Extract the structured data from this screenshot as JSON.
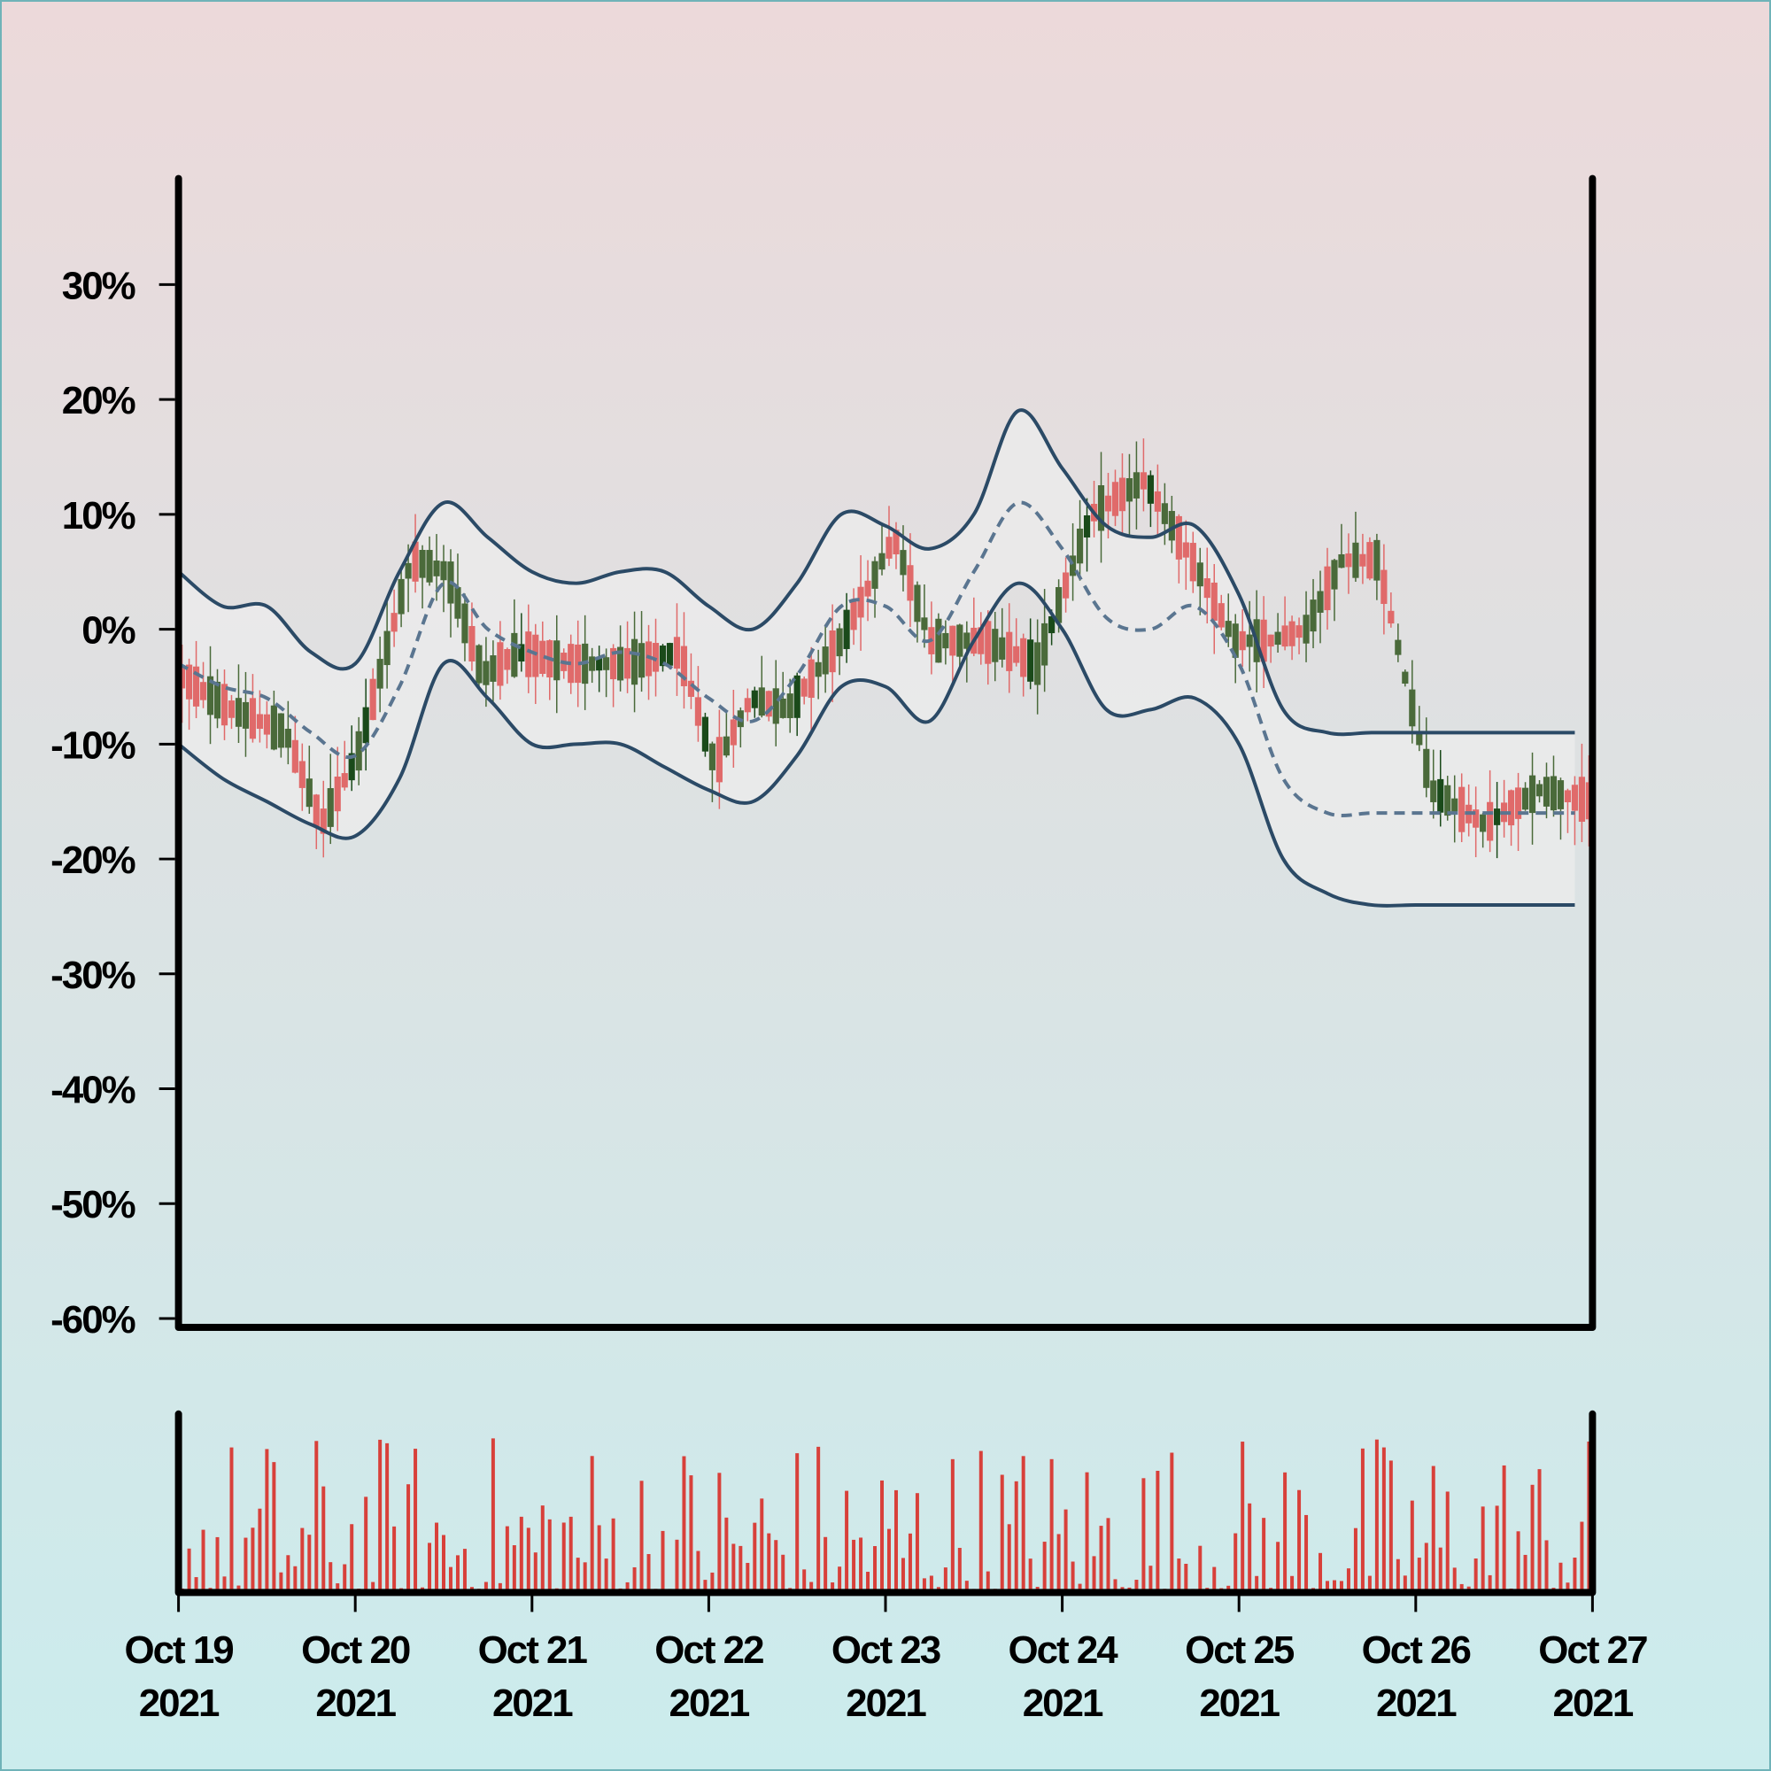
{
  "chart_data": {
    "type": "candlestick",
    "title": "",
    "xlabel": "",
    "ylabel": "",
    "x_start": "2021-10-19",
    "x_end": "2021-10-27",
    "x_tick_labels": [
      {
        "line1": "Oct 19",
        "line2": "2021"
      },
      {
        "line1": "Oct 20",
        "line2": "2021"
      },
      {
        "line1": "Oct 21",
        "line2": "2021"
      },
      {
        "line1": "Oct 22",
        "line2": "2021"
      },
      {
        "line1": "Oct 23",
        "line2": "2021"
      },
      {
        "line1": "Oct 24",
        "line2": "2021"
      },
      {
        "line1": "Oct 25",
        "line2": "2021"
      },
      {
        "line1": "Oct 26",
        "line2": "2021"
      },
      {
        "line1": "Oct 27",
        "line2": "2021"
      }
    ],
    "y_ticks": [
      30,
      20,
      10,
      0,
      -10,
      -20,
      -30,
      -40,
      -50,
      -60
    ],
    "y_tick_labels": [
      "30%",
      "20%",
      "10%",
      "0%",
      "-10%",
      "-20%",
      "-30%",
      "-40%",
      "-50%",
      "-60%"
    ],
    "ylim": [
      -60,
      38
    ],
    "y_unit": "%",
    "bollinger_bands": {
      "x": [
        0,
        0.25,
        0.5,
        0.75,
        1.0,
        1.25,
        1.5,
        1.75,
        2.0,
        2.25,
        2.5,
        2.75,
        3.0,
        3.25,
        3.5,
        3.75,
        4.0,
        4.25,
        4.5,
        4.75,
        5.0,
        5.25,
        5.5,
        5.75,
        6.0,
        6.25,
        6.5,
        6.75,
        7.0,
        7.25,
        7.5,
        7.75,
        7.9
      ],
      "upper": [
        5,
        2,
        2,
        -2,
        -3,
        5,
        11,
        8,
        5,
        4,
        5,
        5,
        2,
        0,
        4,
        10,
        9,
        7,
        10,
        19,
        14,
        9,
        8,
        9,
        3,
        -7,
        -9,
        -9,
        -9,
        -9,
        -9,
        -9,
        -9
      ],
      "middle": [
        -3,
        -5,
        -6,
        -9,
        -11,
        -5,
        4,
        0,
        -2,
        -3,
        -2,
        -3,
        -6,
        -8,
        -4,
        2,
        2,
        -1,
        5,
        11,
        7,
        1,
        0,
        2,
        -3,
        -13,
        -16,
        -16,
        -16,
        -16,
        -16,
        -16,
        -16
      ],
      "lower": [
        -10,
        -13,
        -15,
        -17,
        -18,
        -13,
        -3,
        -6,
        -10,
        -10,
        -10,
        -12,
        -14,
        -15,
        -11,
        -5,
        -5,
        -8,
        -1,
        4,
        0,
        -7,
        -7,
        -6,
        -10,
        -20,
        -23,
        -24,
        -24,
        -24,
        -24,
        -24,
        -24
      ]
    },
    "candles": {
      "count": 200,
      "path_x": [
        0,
        0.3,
        0.6,
        0.8,
        1.0,
        1.3,
        1.5,
        1.7,
        1.9,
        2.2,
        2.5,
        2.8,
        3.0,
        3.2,
        3.4,
        3.7,
        4.0,
        4.2,
        4.5,
        4.8,
        5.1,
        5.4,
        5.7,
        5.9,
        6.1,
        6.3,
        6.5,
        6.7,
        7.0,
        7.3,
        7.6,
        7.9
      ],
      "path_y": [
        -4,
        -7,
        -9,
        -17,
        -11,
        6,
        5,
        -4,
        -2,
        -3,
        -3,
        -2,
        -12,
        -6,
        -7,
        -1,
        8,
        -1,
        -1,
        -3,
        10,
        13,
        5,
        -1,
        -1,
        0,
        6,
        6,
        -14,
        -17,
        -14,
        -15
      ],
      "up_color": "#e06a6a",
      "down_color": "#4a6a3a",
      "down_dark_color": "#1a4a1a"
    },
    "volume": {
      "count": 200,
      "color": "#d8403a"
    },
    "colors": {
      "band": "#2b4a66",
      "middle_band": "#5a7590",
      "band_fill": "#ececec",
      "axis": "#000000",
      "background_top": "#ecd9da",
      "background_bottom": "#cbeced"
    },
    "grid": false,
    "legend": "none"
  }
}
